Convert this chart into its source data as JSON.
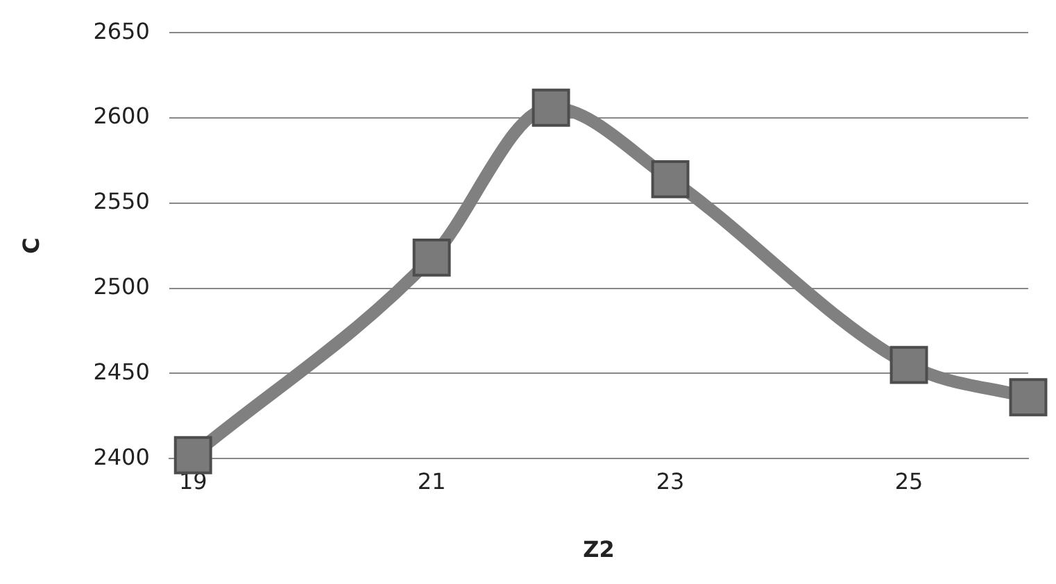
{
  "chart_data": {
    "type": "line",
    "xlabel": "Z2",
    "ylabel": "C",
    "x": [
      19,
      21,
      22,
      23,
      25,
      26
    ],
    "series": [
      {
        "color": "#808080",
        "values": [
          2402,
          2518,
          2606,
          2564,
          2455,
          2436
        ]
      }
    ],
    "xlim": [
      18.8,
      26
    ],
    "xticks": [
      19,
      21,
      23,
      25
    ],
    "ylim": [
      2400,
      2650
    ],
    "yticks": [
      2400,
      2450,
      2500,
      2550,
      2600,
      2650
    ],
    "grid": "y",
    "legend": false,
    "marker": "square",
    "line_style": "solid"
  }
}
